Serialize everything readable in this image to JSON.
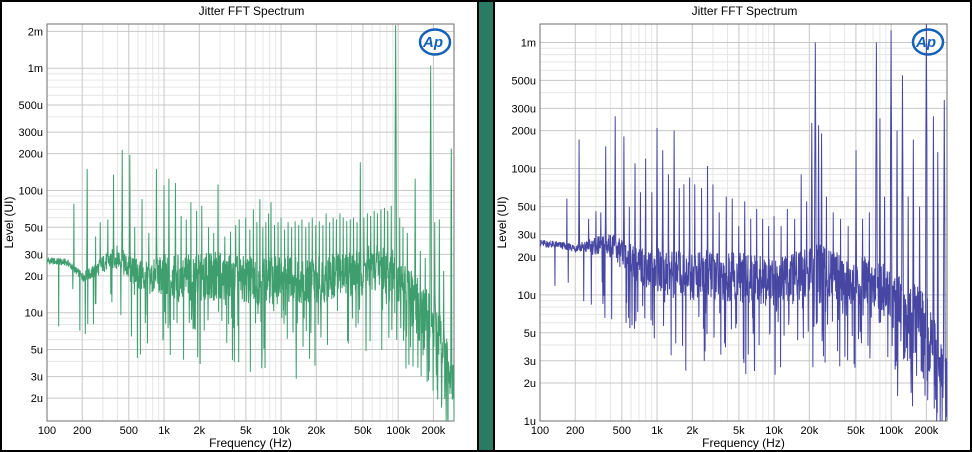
{
  "window": {
    "background": "#ffffff",
    "outer_border_color": "#000000",
    "divider_color": "#2a7a64"
  },
  "logo": {
    "text": "Ap",
    "color": "#1461b8",
    "name": "audio-precision-logo"
  },
  "panels": [
    {
      "title": "Jitter FFT Spectrum"
    },
    {
      "title": "Jitter FFT Spectrum"
    }
  ],
  "chart_data": [
    {
      "type": "line",
      "title": "Jitter FFT Spectrum",
      "xlabel": "Frequency (Hz)",
      "ylabel": "Level (UI)",
      "x_scale": "log",
      "y_scale": "log",
      "xlim": [
        100,
        300000
      ],
      "ylim": [
        1.3e-06,
        0.0023
      ],
      "grid": {
        "major": "#c7c7c7",
        "minor": "#e6e6e6",
        "border": "#6e6e6e"
      },
      "line_color": "#3f9e6e",
      "legend": "none",
      "seed": 1,
      "x_ticks": [
        {
          "v": 100,
          "label": "100"
        },
        {
          "v": 200,
          "label": "200"
        },
        {
          "v": 500,
          "label": "500"
        },
        {
          "v": 1000,
          "label": "1k"
        },
        {
          "v": 2000,
          "label": "2k"
        },
        {
          "v": 5000,
          "label": "5k"
        },
        {
          "v": 10000,
          "label": "10k"
        },
        {
          "v": 20000,
          "label": "20k"
        },
        {
          "v": 50000,
          "label": "50k"
        },
        {
          "v": 100000,
          "label": "100k"
        },
        {
          "v": 200000,
          "label": "200k"
        }
      ],
      "y_ticks": [
        {
          "v": 0.002,
          "label": "2m"
        },
        {
          "v": 0.001,
          "label": "1m"
        },
        {
          "v": 0.0005,
          "label": "500u"
        },
        {
          "v": 0.0003,
          "label": "300u"
        },
        {
          "v": 0.0002,
          "label": "200u"
        },
        {
          "v": 0.0001,
          "label": "100u"
        },
        {
          "v": 5e-05,
          "label": "50u"
        },
        {
          "v": 3e-05,
          "label": "30u"
        },
        {
          "v": 2e-05,
          "label": "20u"
        },
        {
          "v": 1e-05,
          "label": "10u"
        },
        {
          "v": 5e-06,
          "label": "5u"
        },
        {
          "v": 3e-06,
          "label": "3u"
        },
        {
          "v": 2e-06,
          "label": "2u"
        }
      ],
      "noise_floor": [
        [
          100,
          2.7e-05
        ],
        [
          150,
          2.6e-05
        ],
        [
          200,
          2e-05
        ],
        [
          250,
          2.2e-05
        ],
        [
          300,
          2.6e-05
        ],
        [
          400,
          3e-05
        ],
        [
          500,
          2.4e-05
        ],
        [
          700,
          2e-05
        ],
        [
          1000,
          2.2e-05
        ],
        [
          2000,
          2.1e-05
        ],
        [
          3000,
          2.2e-05
        ],
        [
          5000,
          2e-05
        ],
        [
          8000,
          2e-05
        ],
        [
          12000,
          2.1e-05
        ],
        [
          20000,
          2e-05
        ],
        [
          30000,
          2.2e-05
        ],
        [
          50000,
          2.4e-05
        ],
        [
          70000,
          2.6e-05
        ],
        [
          90000,
          2.3e-05
        ],
        [
          110000,
          1.8e-05
        ],
        [
          140000,
          1.5e-05
        ],
        [
          180000,
          1.1e-05
        ],
        [
          220000,
          7.5e-06
        ],
        [
          260000,
          4.5e-06
        ],
        [
          295000,
          2.6e-06
        ]
      ],
      "peaks": [
        [
          170,
          7.8e-05
        ],
        [
          220,
          0.00015
        ],
        [
          260,
          4.2e-05
        ],
        [
          285,
          5.5e-05
        ],
        [
          330,
          5.8e-05
        ],
        [
          370,
          0.000135
        ],
        [
          440,
          0.000215
        ],
        [
          510,
          0.000195
        ],
        [
          560,
          5e-05
        ],
        [
          650,
          8.5e-05
        ],
        [
          740,
          4.5e-05
        ],
        [
          860,
          0.00015
        ],
        [
          1000,
          0.00011
        ],
        [
          1100,
          0.000125
        ],
        [
          1250,
          0.000115
        ],
        [
          1400,
          6.2e-05
        ],
        [
          1550,
          5.8e-05
        ],
        [
          1700,
          8e-05
        ],
        [
          1900,
          6.8e-05
        ],
        [
          2100,
          7.5e-05
        ],
        [
          2400,
          5e-05
        ],
        [
          2650,
          4.5e-05
        ],
        [
          2900,
          0.000112
        ],
        [
          3300,
          4.2e-05
        ],
        [
          3700,
          4.6e-05
        ],
        [
          4100,
          5.2e-05
        ],
        [
          4400,
          5.8e-05
        ],
        [
          5000,
          6e-05
        ],
        [
          5400,
          4.8e-05
        ],
        [
          5800,
          7e-05
        ],
        [
          6200,
          5.5e-05
        ],
        [
          6600,
          8.5e-05
        ],
        [
          7000,
          5e-05
        ],
        [
          7400,
          5.5e-05
        ],
        [
          7800,
          6.5e-05
        ],
        [
          8200,
          8e-05
        ],
        [
          8800,
          5.2e-05
        ],
        [
          9400,
          5.5e-05
        ],
        [
          10000,
          6e-05
        ],
        [
          10700,
          4.8e-05
        ],
        [
          11500,
          5.5e-05
        ],
        [
          12300,
          5e-05
        ],
        [
          13200,
          5.6e-05
        ],
        [
          14100,
          5.2e-05
        ],
        [
          15100,
          5.8e-05
        ],
        [
          16200,
          5e-05
        ],
        [
          17300,
          5.5e-05
        ],
        [
          18500,
          6e-05
        ],
        [
          19800,
          5.2e-05
        ],
        [
          21200,
          5.6e-05
        ],
        [
          22700,
          5.2e-05
        ],
        [
          24300,
          6.5e-05
        ],
        [
          26000,
          5.5e-05
        ],
        [
          27800,
          6e-05
        ],
        [
          29700,
          5.8e-05
        ],
        [
          31800,
          6.5e-05
        ],
        [
          34000,
          6e-05
        ],
        [
          36400,
          5.6e-05
        ],
        [
          38900,
          5.8e-05
        ],
        [
          41600,
          6e-05
        ],
        [
          44500,
          5.5e-05
        ],
        [
          47600,
          0.00017
        ],
        [
          50900,
          6e-05
        ],
        [
          54500,
          6.5e-05
        ],
        [
          58300,
          6.2e-05
        ],
        [
          62400,
          6.8e-05
        ],
        [
          66700,
          6.5e-05
        ],
        [
          71400,
          7e-05
        ],
        [
          76400,
          7.2e-05
        ],
        [
          81700,
          6.8e-05
        ],
        [
          87400,
          7.5e-05
        ],
        [
          95000,
          0.00225
        ],
        [
          103000,
          6e-05
        ],
        [
          110000,
          5e-05
        ],
        [
          120000,
          4.5e-05
        ],
        [
          140000,
          0.000125
        ],
        [
          155000,
          3.2e-05
        ],
        [
          170000,
          2.8e-05
        ],
        [
          190000,
          0.00105
        ],
        [
          205000,
          5.5e-05
        ],
        [
          225000,
          5.8e-05
        ],
        [
          245000,
          2.2e-05
        ],
        [
          285000,
          0.00022
        ]
      ]
    },
    {
      "type": "line",
      "title": "Jitter FFT Spectrum",
      "xlabel": "Frequency (Hz)",
      "ylabel": "Level (UI)",
      "x_scale": "log",
      "y_scale": "log",
      "xlim": [
        100,
        300000
      ],
      "ylim": [
        1e-06,
        0.0014
      ],
      "grid": {
        "major": "#c7c7c7",
        "minor": "#e6e6e6",
        "border": "#6e6e6e"
      },
      "line_color": "#4747a3",
      "legend": "none",
      "seed": 2,
      "x_ticks": [
        {
          "v": 100,
          "label": "100"
        },
        {
          "v": 200,
          "label": "200"
        },
        {
          "v": 500,
          "label": "500"
        },
        {
          "v": 1000,
          "label": "1k"
        },
        {
          "v": 2000,
          "label": "2k"
        },
        {
          "v": 5000,
          "label": "5k"
        },
        {
          "v": 10000,
          "label": "10k"
        },
        {
          "v": 20000,
          "label": "20k"
        },
        {
          "v": 50000,
          "label": "50k"
        },
        {
          "v": 100000,
          "label": "100k"
        },
        {
          "v": 200000,
          "label": "200k"
        }
      ],
      "y_ticks": [
        {
          "v": 0.001,
          "label": "1m"
        },
        {
          "v": 0.0005,
          "label": "500u"
        },
        {
          "v": 0.0003,
          "label": "300u"
        },
        {
          "v": 0.0002,
          "label": "200u"
        },
        {
          "v": 0.0001,
          "label": "100u"
        },
        {
          "v": 5e-05,
          "label": "50u"
        },
        {
          "v": 3e-05,
          "label": "30u"
        },
        {
          "v": 2e-05,
          "label": "20u"
        },
        {
          "v": 1e-05,
          "label": "10u"
        },
        {
          "v": 5e-06,
          "label": "5u"
        },
        {
          "v": 3e-06,
          "label": "3u"
        },
        {
          "v": 2e-06,
          "label": "2u"
        },
        {
          "v": 1e-06,
          "label": "1u"
        }
      ],
      "noise_floor": [
        [
          100,
          2.6e-05
        ],
        [
          150,
          2.5e-05
        ],
        [
          200,
          2.4e-05
        ],
        [
          300,
          2.5e-05
        ],
        [
          400,
          2.6e-05
        ],
        [
          500,
          2.2e-05
        ],
        [
          700,
          1.8e-05
        ],
        [
          1000,
          1.7e-05
        ],
        [
          1500,
          1.6e-05
        ],
        [
          2000,
          1.5e-05
        ],
        [
          3000,
          1.6e-05
        ],
        [
          5000,
          1.5e-05
        ],
        [
          8000,
          1.4e-05
        ],
        [
          12000,
          1.4e-05
        ],
        [
          18000,
          1.6e-05
        ],
        [
          25000,
          1.8e-05
        ],
        [
          35000,
          1.5e-05
        ],
        [
          50000,
          1.4e-05
        ],
        [
          70000,
          1.4e-05
        ],
        [
          90000,
          1.2e-05
        ],
        [
          110000,
          1e-05
        ],
        [
          140000,
          9e-06
        ],
        [
          180000,
          8e-06
        ],
        [
          220000,
          6e-06
        ],
        [
          260000,
          3.5e-06
        ],
        [
          295000,
          2.3e-06
        ]
      ],
      "peaks": [
        [
          170,
          5.8e-05
        ],
        [
          216,
          0.00017
        ],
        [
          260,
          4e-05
        ],
        [
          300,
          4.6e-05
        ],
        [
          330,
          4.5e-05
        ],
        [
          365,
          0.00015
        ],
        [
          440,
          0.00026
        ],
        [
          520,
          0.00018
        ],
        [
          580,
          5e-05
        ],
        [
          650,
          0.00011
        ],
        [
          720,
          6.5e-05
        ],
        [
          800,
          0.00012
        ],
        [
          905,
          6.5e-05
        ],
        [
          1000,
          0.00021
        ],
        [
          1120,
          0.00014
        ],
        [
          1250,
          9e-05
        ],
        [
          1400,
          0.0002
        ],
        [
          1550,
          7e-05
        ],
        [
          1700,
          7.5e-05
        ],
        [
          1900,
          8.5e-05
        ],
        [
          2100,
          7.5e-05
        ],
        [
          2400,
          7e-05
        ],
        [
          2700,
          0.000105
        ],
        [
          3000,
          7.5e-05
        ],
        [
          3400,
          4.5e-05
        ],
        [
          3900,
          6e-05
        ],
        [
          4400,
          5.8e-05
        ],
        [
          5000,
          3.5e-05
        ],
        [
          5600,
          5.5e-05
        ],
        [
          6300,
          4e-05
        ],
        [
          7100,
          4.8e-05
        ],
        [
          8000,
          4e-05
        ],
        [
          9000,
          3.5e-05
        ],
        [
          10000,
          4.2e-05
        ],
        [
          11500,
          3.5e-05
        ],
        [
          13000,
          4.8e-05
        ],
        [
          15000,
          4e-05
        ],
        [
          17000,
          9e-05
        ],
        [
          19000,
          5.5e-05
        ],
        [
          21000,
          0.00023
        ],
        [
          22500,
          0.001
        ],
        [
          24000,
          0.00022
        ],
        [
          25500,
          0.00019
        ],
        [
          28000,
          6e-05
        ],
        [
          32000,
          4.5e-05
        ],
        [
          37000,
          4e-05
        ],
        [
          43000,
          3.5e-05
        ],
        [
          50000,
          0.00014
        ],
        [
          57000,
          4e-05
        ],
        [
          65000,
          4.5e-05
        ],
        [
          75000,
          0.001
        ],
        [
          80000,
          0.00025
        ],
        [
          88000,
          6e-05
        ],
        [
          100000,
          0.00125
        ],
        [
          112000,
          0.0002
        ],
        [
          125000,
          0.00055
        ],
        [
          140000,
          6e-05
        ],
        [
          155000,
          0.00017
        ],
        [
          175000,
          5e-05
        ],
        [
          200000,
          0.00145
        ],
        [
          230000,
          0.00026
        ],
        [
          250000,
          0.000135
        ],
        [
          285000,
          0.00035
        ]
      ]
    }
  ]
}
